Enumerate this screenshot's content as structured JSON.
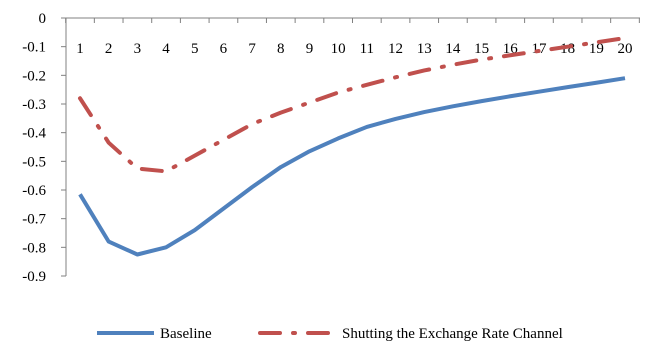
{
  "chart_data": {
    "type": "line",
    "title": "",
    "xlabel": "",
    "ylabel": "",
    "x": [
      1,
      2,
      3,
      4,
      5,
      6,
      7,
      8,
      9,
      10,
      11,
      12,
      13,
      14,
      15,
      16,
      17,
      18,
      19,
      20
    ],
    "x_tick_labels": [
      "1",
      "2",
      "3",
      "4",
      "5",
      "6",
      "7",
      "8",
      "9",
      "10",
      "11",
      "12",
      "13",
      "14",
      "15",
      "16",
      "17",
      "18",
      "19",
      "20"
    ],
    "ylim": [
      -0.9,
      0
    ],
    "y_ticks": [
      0,
      -0.1,
      -0.2,
      -0.3,
      -0.4,
      -0.5,
      -0.6,
      -0.7,
      -0.8,
      -0.9
    ],
    "y_tick_labels": [
      "0",
      "-0.1",
      "-0.2",
      "-0.3",
      "-0.4",
      "-0.5",
      "-0.6",
      "-0.7",
      "-0.8",
      "-0.9"
    ],
    "x_axis_position": "top (at y = 0)",
    "grid": false,
    "legend_position": "bottom",
    "series": [
      {
        "name": "Baseline",
        "color": "#4F81BD",
        "style": "solid",
        "values": [
          -0.615,
          -0.78,
          -0.825,
          -0.8,
          -0.74,
          -0.665,
          -0.59,
          -0.52,
          -0.465,
          -0.42,
          -0.38,
          -0.352,
          -0.328,
          -0.308,
          -0.29,
          -0.273,
          -0.257,
          -0.241,
          -0.226,
          -0.21
        ]
      },
      {
        "name": "Shutting the Exchange Rate Channel",
        "color": "#C0504D",
        "style": "dash-dot",
        "values": [
          -0.28,
          -0.435,
          -0.525,
          -0.535,
          -0.48,
          -0.425,
          -0.37,
          -0.33,
          -0.295,
          -0.26,
          -0.233,
          -0.207,
          -0.183,
          -0.163,
          -0.145,
          -0.13,
          -0.115,
          -0.1,
          -0.085,
          -0.07
        ]
      }
    ]
  }
}
